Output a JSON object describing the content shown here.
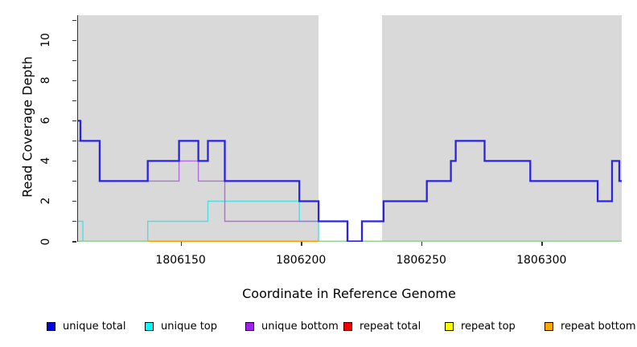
{
  "chart_data": {
    "type": "line",
    "subtype": "step-coverage-plot",
    "title": "",
    "xlabel": "Coordinate in Reference Genome",
    "ylabel": "Read Coverage Depth",
    "xlim": [
      1806107,
      1806333
    ],
    "ylim": [
      0,
      11.25
    ],
    "grid": false,
    "plot_bg_color": "#d9d9d9",
    "axis_color": "#333333",
    "x_ticks": [
      1806150,
      1806200,
      1806250,
      1806300
    ],
    "y_ticks": [
      0,
      1,
      2,
      3,
      4,
      5,
      6,
      7,
      8,
      9,
      10,
      11
    ],
    "y_labeled_ticks": [
      0,
      2,
      4,
      6,
      8,
      10
    ],
    "highlight_band": {
      "x0": 1806207,
      "x1": 1806233.5,
      "color": "#ffffff"
    },
    "series": [
      {
        "name": "repeat total",
        "line_color": "#dd2222",
        "stroke_width": 1.3,
        "x_breaks": [
          1806107,
          1806333
        ],
        "values": [
          0
        ]
      },
      {
        "name": "unique top",
        "line_color": "#52dce2",
        "stroke_width": 1.4,
        "x_breaks": [
          1806107,
          1806109,
          1806136,
          1806161,
          1806199,
          1806207,
          1806333
        ],
        "values": [
          1,
          0,
          1,
          2,
          1,
          0
        ]
      },
      {
        "name": "repeat top",
        "line_color": "#93cf96",
        "stroke_width": 1.4,
        "x_breaks": [
          1806107,
          1806333
        ],
        "values": [
          0
        ]
      },
      {
        "name": "repeat bottom",
        "line_color": "#ff9c00",
        "stroke_width": 1.6,
        "x_breaks": [
          1806136,
          1806207
        ],
        "values": [
          0
        ]
      },
      {
        "name": "unique bottom",
        "line_color": "#b46be0",
        "stroke_width": 1.4,
        "x_breaks": [
          1806107,
          1806116,
          1806149,
          1806157,
          1806168,
          1806219,
          1806225,
          1806234,
          1806252,
          1806262,
          1806264,
          1806276,
          1806295,
          1806323,
          1806329,
          1806332,
          1806333
        ],
        "values": [
          5,
          3,
          4,
          3,
          1,
          0,
          1,
          2,
          3,
          4,
          5,
          4,
          3,
          2,
          4,
          3
        ]
      },
      {
        "name": "unique total",
        "line_color": "#2a23e6",
        "stroke_width": 2.3,
        "x_breaks": [
          1806107,
          1806108,
          1806116,
          1806136,
          1806149,
          1806157,
          1806161,
          1806168,
          1806199,
          1806207,
          1806219,
          1806225,
          1806234,
          1806252,
          1806262,
          1806264,
          1806276,
          1806295,
          1806323,
          1806329,
          1806332,
          1806333
        ],
        "values": [
          6,
          5,
          3,
          4,
          5,
          4,
          5,
          3,
          2,
          1,
          0,
          1,
          2,
          3,
          4,
          5,
          4,
          3,
          2,
          4,
          3
        ]
      }
    ],
    "legend": {
      "position": "bottom",
      "entries": [
        {
          "label": "unique total",
          "color": "#0000ee"
        },
        {
          "label": "unique top",
          "color": "#00ffff"
        },
        {
          "label": "unique bottom",
          "color": "#a020f0"
        },
        {
          "label": "repeat total",
          "color": "#ee0000"
        },
        {
          "label": "repeat top",
          "color": "#ffff00"
        },
        {
          "label": "repeat bottom",
          "color": "#ffa500"
        }
      ]
    }
  }
}
